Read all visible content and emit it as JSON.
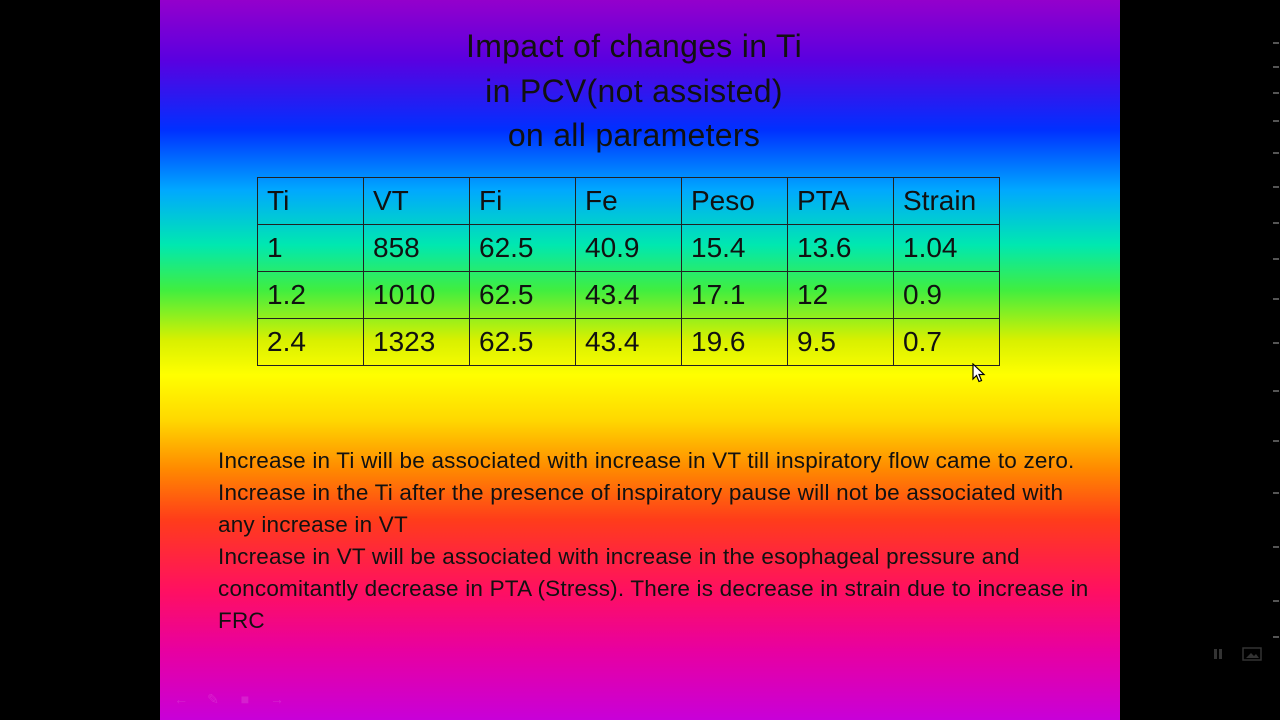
{
  "slide": {
    "title_lines": [
      "Impact of changes in Ti",
      "in PCV(not assisted)",
      "on all parameters"
    ],
    "table": {
      "header": [
        "Ti",
        "VT",
        "Fi",
        "Fe",
        "Peso",
        "PTA",
        "Strain"
      ],
      "rows": [
        [
          "1",
          "858",
          "62.5",
          "40.9",
          "15.4",
          "13.6",
          "1.04"
        ],
        [
          "1.2",
          "1010",
          "62.5",
          "43.4",
          "17.1",
          "12",
          "0.9"
        ],
        [
          "2.4",
          "1323",
          "62.5",
          "43.4",
          "19.6",
          "9.5",
          "0.7"
        ]
      ]
    },
    "body_paragraphs": [
      "Increase in Ti will be associated with increase in VT till inspiratory flow came to zero. Increase in the Ti after the presence of inspiratory pause will not be associated with  any increase in VT",
      "Increase in VT will be associated with increase in the esophageal pressure and concomitantly decrease in PTA (Stress). There is decrease in strain due to increase in FRC"
    ]
  },
  "icons": {
    "cursor": "mouse-pointer-icon",
    "pause": "pause-icon",
    "slide_view": "slide-view-icon",
    "nav_prev": "previous-arrow-icon",
    "nav_pen": "pen-icon",
    "nav_menu": "slide-menu-icon",
    "nav_next": "next-arrow-icon"
  }
}
